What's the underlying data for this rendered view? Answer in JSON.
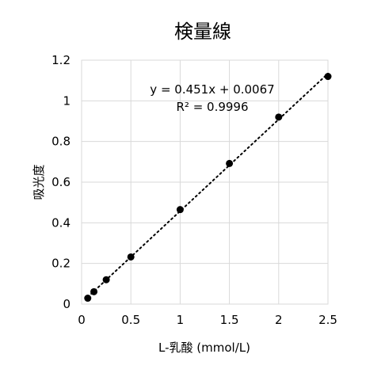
{
  "chart_data": {
    "type": "scatter",
    "title": "検量線",
    "xlabel": "L-乳酸 (mmol/L)",
    "ylabel": "吸光度",
    "xlim": [
      0,
      2.5
    ],
    "ylim": [
      0,
      1.2
    ],
    "x_ticks": [
      "0",
      "0.5",
      "1",
      "1.5",
      "2",
      "2.5"
    ],
    "y_ticks": [
      "0",
      "0.2",
      "0.4",
      "0.6",
      "0.8",
      "1",
      "1.2"
    ],
    "grid": true,
    "legend": "none",
    "series": [
      {
        "x": [
          0.0625,
          0.125,
          0.25,
          0.5,
          1,
          1.5,
          2,
          2.5
        ],
        "y": [
          0.029,
          0.061,
          0.12,
          0.232,
          0.465,
          0.692,
          0.92,
          1.12
        ],
        "color": "#000000"
      }
    ],
    "trendline": {
      "type": "linear",
      "slope": 0.451,
      "intercept": 0.0067,
      "x_range": [
        0.0625,
        2.5
      ],
      "style": "dotted",
      "color": "#000000"
    },
    "annotations": {
      "equation": "y = 0.451x + 0.0067",
      "r_squared": "R² = 0.9996"
    }
  }
}
